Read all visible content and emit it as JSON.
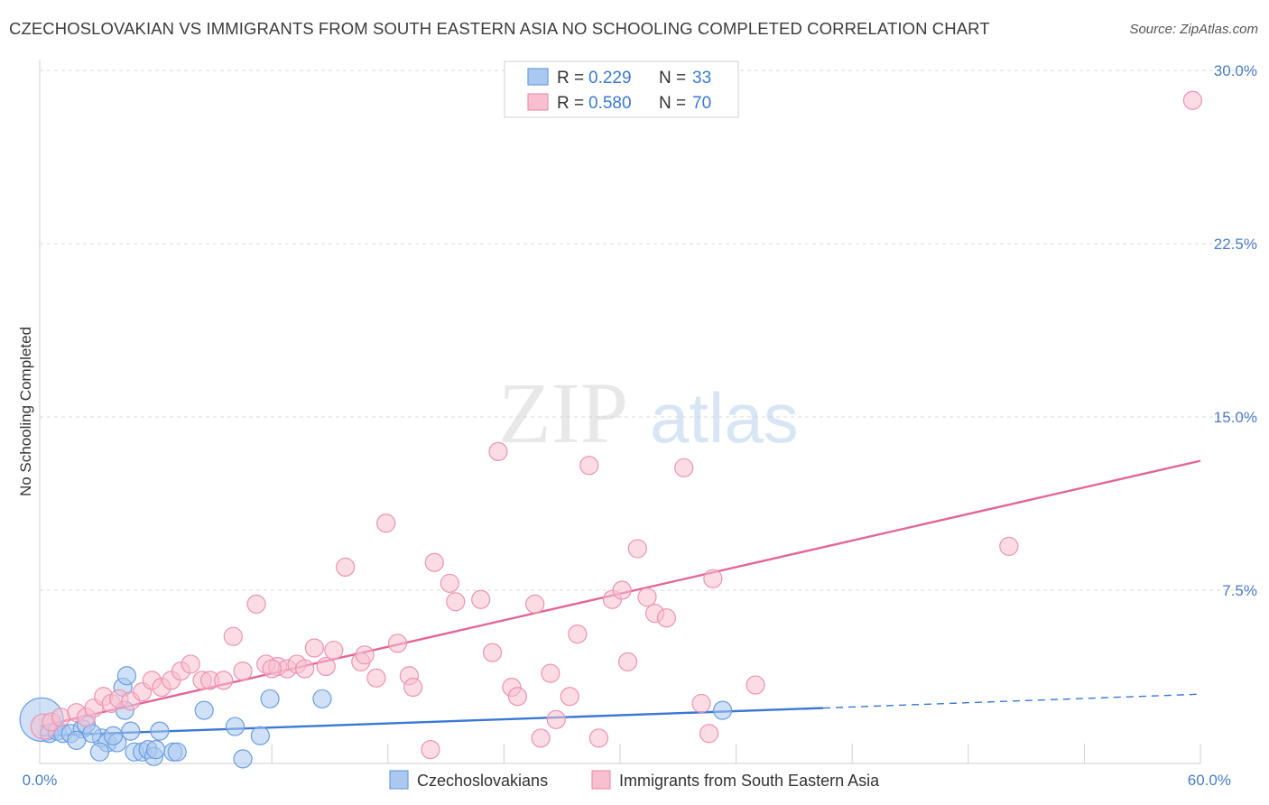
{
  "title": "CZECHOSLOVAKIAN VS IMMIGRANTS FROM SOUTH EASTERN ASIA NO SCHOOLING COMPLETED CORRELATION CHART",
  "source": "Source: ZipAtlas.com",
  "watermark": {
    "zip": "ZIP",
    "atlas": "atlas"
  },
  "colors": {
    "blue_fill": "#aac8f0",
    "blue_stroke": "#6a9ee0",
    "blue_line": "#3a78d4",
    "pink_fill": "#f7bfd0",
    "pink_stroke": "#ec93b0",
    "pink_line": "#e2669a",
    "grid": "#d8d8d8",
    "tick_text": "#4a7cc8"
  },
  "chart_data": {
    "type": "scatter",
    "title": "CZECHOSLOVAKIAN VS IMMIGRANTS FROM SOUTH EASTERN ASIA NO SCHOOLING COMPLETED CORRELATION CHART",
    "xlabel": "",
    "ylabel": "No Schooling Completed",
    "xlim": [
      0,
      60
    ],
    "ylim": [
      0,
      30
    ],
    "x_ticks": [
      {
        "value": 0,
        "label": "0.0%"
      },
      {
        "value": 60,
        "label": "60.0%"
      }
    ],
    "y_ticks": [
      {
        "value": 7.5,
        "label": "7.5%"
      },
      {
        "value": 15,
        "label": "15.0%"
      },
      {
        "value": 22.5,
        "label": "22.5%"
      },
      {
        "value": 30,
        "label": "30.0%"
      }
    ],
    "legend": [
      {
        "series": "Czechoslovakians",
        "r_label": "R =",
        "r_value": "0.229",
        "n_label": "N =",
        "n_value": "33"
      },
      {
        "series": "Immigrants from South Eastern Asia",
        "r_label": "R =",
        "r_value": "0.580",
        "n_label": "N =",
        "n_value": "70"
      }
    ],
    "series": [
      {
        "name": "Czechoslovakians",
        "color": "blue",
        "trend": {
          "x0": 0,
          "y0": 1.2,
          "x1": 40.5,
          "y1": 2.4,
          "dash_to_x": 60,
          "dash_to_y": 3.0
        },
        "points": [
          [
            0.1,
            1.9,
            24
          ],
          [
            0.5,
            1.3,
            10
          ],
          [
            0.9,
            1.4,
            10
          ],
          [
            1.2,
            1.3,
            10
          ],
          [
            1.6,
            1.3,
            10
          ],
          [
            2.2,
            1.5,
            10
          ],
          [
            2.4,
            1.7,
            10
          ],
          [
            1.9,
            1.0,
            10
          ],
          [
            3.2,
            1.1,
            10
          ],
          [
            3.5,
            0.9,
            10
          ],
          [
            3.1,
            0.5,
            10
          ],
          [
            4.3,
            3.3,
            10
          ],
          [
            4.4,
            2.3,
            10
          ],
          [
            4.5,
            3.8,
            10
          ],
          [
            4.7,
            1.4,
            10
          ],
          [
            4.9,
            0.5,
            10
          ],
          [
            5.3,
            0.5,
            10
          ],
          [
            5.6,
            0.6,
            10
          ],
          [
            5.9,
            0.3,
            10
          ],
          [
            6.2,
            1.4,
            10
          ],
          [
            6.9,
            0.5,
            10
          ],
          [
            7.1,
            0.5,
            10
          ],
          [
            8.5,
            2.3,
            10
          ],
          [
            10.1,
            1.6,
            10
          ],
          [
            10.5,
            0.2,
            10
          ],
          [
            11.4,
            1.2,
            10
          ],
          [
            11.9,
            2.8,
            10
          ],
          [
            14.6,
            2.8,
            10
          ],
          [
            35.3,
            2.3,
            10
          ],
          [
            4.0,
            0.9,
            10
          ],
          [
            3.8,
            1.2,
            10
          ],
          [
            2.7,
            1.3,
            10
          ],
          [
            6.0,
            0.6,
            10
          ]
        ]
      },
      {
        "name": "Immigrants from South Eastern Asia",
        "color": "pink",
        "trend": {
          "x0": 0,
          "y0": 1.6,
          "x1": 60,
          "y1": 13.1
        },
        "points": [
          [
            0.2,
            1.6,
            14
          ],
          [
            0.6,
            1.8,
            10
          ],
          [
            1.1,
            2.0,
            10
          ],
          [
            1.9,
            2.2,
            10
          ],
          [
            2.4,
            2.0,
            10
          ],
          [
            2.8,
            2.4,
            10
          ],
          [
            3.3,
            2.9,
            10
          ],
          [
            3.7,
            2.6,
            10
          ],
          [
            4.1,
            2.8,
            10
          ],
          [
            4.7,
            2.7,
            10
          ],
          [
            5.3,
            3.1,
            10
          ],
          [
            5.8,
            3.6,
            10
          ],
          [
            6.3,
            3.3,
            10
          ],
          [
            6.8,
            3.6,
            10
          ],
          [
            7.3,
            4.0,
            10
          ],
          [
            7.8,
            4.3,
            10
          ],
          [
            8.4,
            3.6,
            10
          ],
          [
            8.8,
            3.6,
            10
          ],
          [
            9.5,
            3.6,
            10
          ],
          [
            10.0,
            5.5,
            10
          ],
          [
            10.5,
            4.0,
            10
          ],
          [
            11.2,
            6.9,
            10
          ],
          [
            11.7,
            4.3,
            10
          ],
          [
            12.3,
            4.2,
            10
          ],
          [
            12.8,
            4.1,
            10
          ],
          [
            13.3,
            4.3,
            10
          ],
          [
            13.7,
            4.1,
            10
          ],
          [
            14.2,
            5.0,
            10
          ],
          [
            14.8,
            4.2,
            10
          ],
          [
            15.2,
            4.9,
            10
          ],
          [
            15.8,
            8.5,
            10
          ],
          [
            16.6,
            4.4,
            10
          ],
          [
            16.8,
            4.7,
            10
          ],
          [
            17.4,
            3.7,
            10
          ],
          [
            17.9,
            10.4,
            10
          ],
          [
            18.5,
            5.2,
            10
          ],
          [
            19.1,
            3.8,
            10
          ],
          [
            19.3,
            3.3,
            10
          ],
          [
            20.2,
            0.6,
            10
          ],
          [
            20.4,
            8.7,
            10
          ],
          [
            21.2,
            7.8,
            10
          ],
          [
            21.5,
            7.0,
            10
          ],
          [
            22.8,
            7.1,
            10
          ],
          [
            23.4,
            4.8,
            10
          ],
          [
            23.7,
            13.5,
            10
          ],
          [
            24.4,
            3.3,
            10
          ],
          [
            24.7,
            2.9,
            10
          ],
          [
            25.6,
            6.9,
            10
          ],
          [
            25.9,
            1.1,
            10
          ],
          [
            26.4,
            3.9,
            10
          ],
          [
            26.7,
            1.9,
            10
          ],
          [
            27.4,
            2.9,
            10
          ],
          [
            27.8,
            5.6,
            10
          ],
          [
            28.4,
            12.9,
            10
          ],
          [
            28.9,
            1.1,
            10
          ],
          [
            29.6,
            7.1,
            10
          ],
          [
            30.1,
            7.5,
            10
          ],
          [
            30.4,
            4.4,
            10
          ],
          [
            30.9,
            9.3,
            10
          ],
          [
            31.4,
            7.2,
            10
          ],
          [
            31.8,
            6.5,
            10
          ],
          [
            32.4,
            6.3,
            10
          ],
          [
            33.3,
            12.8,
            10
          ],
          [
            34.2,
            2.6,
            10
          ],
          [
            34.6,
            1.3,
            10
          ],
          [
            34.8,
            8.0,
            10
          ],
          [
            37.0,
            3.4,
            10
          ],
          [
            50.1,
            9.4,
            10
          ],
          [
            59.6,
            28.7,
            10
          ],
          [
            12.0,
            4.1,
            10
          ]
        ]
      }
    ]
  }
}
